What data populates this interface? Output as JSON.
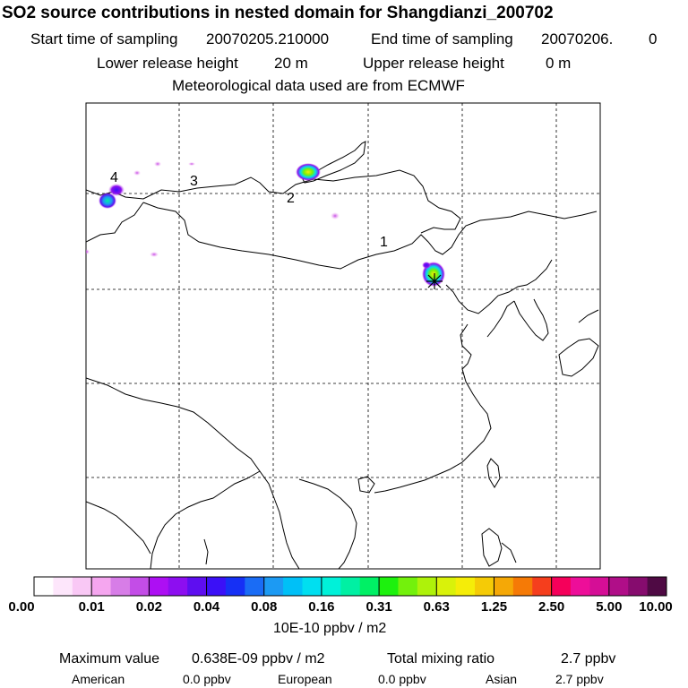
{
  "header": {
    "title": "SO2 source contributions in nested domain for Shangdianzi_200702",
    "start_label": "Start time of sampling",
    "start_value": "20070205.210000",
    "end_label": "End time of sampling",
    "end_value": "20070206.",
    "end_tail": "0",
    "lower_label": "Lower release height",
    "lower_value": "20 m",
    "upper_label": "Upper release height",
    "upper_value": "0 m",
    "met_text": "Meteorological data used are from ECMWF"
  },
  "map": {
    "region": "East Asia nested domain",
    "markers": [
      {
        "label": "1"
      },
      {
        "label": "2"
      },
      {
        "label": "3"
      },
      {
        "label": "4"
      }
    ],
    "station_marker": "star-icon"
  },
  "colorbar": {
    "colors": [
      "#ffffff",
      "#fde6fb",
      "#f9c8f5",
      "#f5a6ef",
      "#d77de7",
      "#c34de7",
      "#ad0ff3",
      "#8d0ef0",
      "#5e0ef0",
      "#3b10f7",
      "#1630f5",
      "#1a6cf5",
      "#1c9af3",
      "#00c0f7",
      "#00dff0",
      "#00f1d9",
      "#00f0a3",
      "#00f065",
      "#1df10e",
      "#73f10c",
      "#aef20a",
      "#d9f20a",
      "#f5ed08",
      "#f5cb06",
      "#f5a806",
      "#f57a06",
      "#f53e1d",
      "#f5005a",
      "#ed0e99",
      "#d50e96",
      "#b00e88",
      "#860c6e",
      "#4f0a44"
    ],
    "labels": [
      "0.00",
      "0.01",
      "0.02",
      "0.04",
      "0.08",
      "0.16",
      "0.31",
      "0.63",
      "1.25",
      "2.50",
      "5.00",
      "10.00"
    ],
    "unit": "10E-10 ppbv / m2"
  },
  "stats": {
    "max_label": "Maximum value",
    "max_value": "0.638E-09 ppbv / m2",
    "total_label": "Total mixing ratio",
    "total_value": "2.7 ppbv",
    "american_label": "American",
    "american_value": "0.0 ppbv",
    "european_label": "European",
    "european_value": "0.0 ppbv",
    "asian_label": "Asian",
    "asian_value": "2.7 ppbv"
  }
}
